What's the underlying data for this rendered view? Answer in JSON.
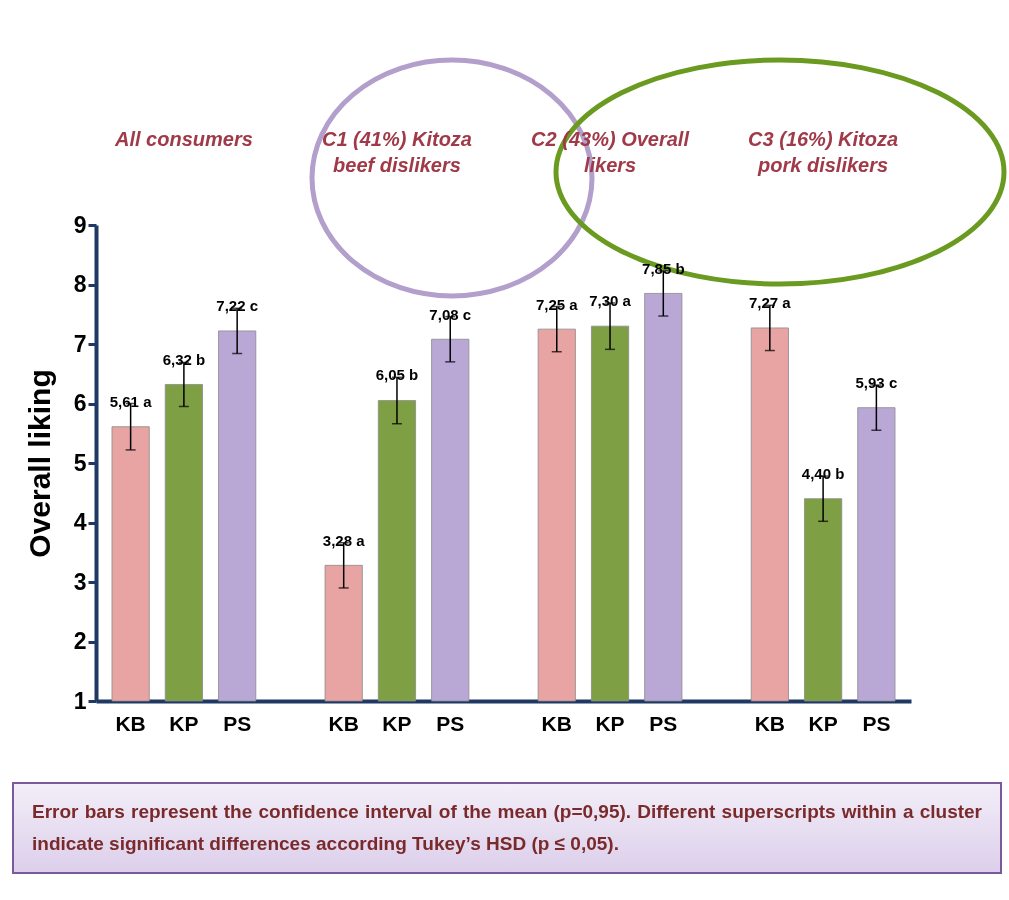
{
  "chart_data": {
    "type": "bar",
    "ylabel": "Overall liking",
    "categories": [
      "KB",
      "KP",
      "PS",
      "KB",
      "KP",
      "PS",
      "KB",
      "KP",
      "PS",
      "KB",
      "KP",
      "PS"
    ],
    "values": [
      5.61,
      6.32,
      7.22,
      3.28,
      6.05,
      7.08,
      7.25,
      7.3,
      7.85,
      7.27,
      4.4,
      5.93
    ],
    "value_labels": [
      "5,61 a",
      "6,32 b",
      "7,22 c",
      "3,28 a",
      "6,05 b",
      "7,08 c",
      "7,25 a",
      "7,30 a",
      "7,85 b",
      "7,27 a",
      "4,40 b",
      "5,93 c"
    ],
    "errors": [
      0.39,
      0.37,
      0.38,
      0.38,
      0.39,
      0.38,
      0.38,
      0.39,
      0.38,
      0.38,
      0.38,
      0.38
    ],
    "colors": [
      "#e8a3a3",
      "#7f9f45",
      "#b9a7d6",
      "#e8a3a3",
      "#7f9f45",
      "#b9a7d6",
      "#e8a3a3",
      "#7f9f45",
      "#b9a7d6",
      "#e8a3a3",
      "#7f9f45",
      "#b9a7d6"
    ],
    "ylim": [
      1,
      9
    ],
    "yticks": [
      1,
      2,
      3,
      4,
      5,
      6,
      7,
      8,
      9
    ],
    "annotations": [
      "All consumers",
      "C1 (41%) Kitoza beef dislikers",
      "C2 (43%) Overall likers",
      "C3 (16%) Kitoza pork dislikers",
      "Error bars represent the confidence interval of the mean (p=0,95). Different superscripts within a cluster indicate significant differences according Tukey’s HSD (p ≤ 0,05)."
    ]
  }
}
